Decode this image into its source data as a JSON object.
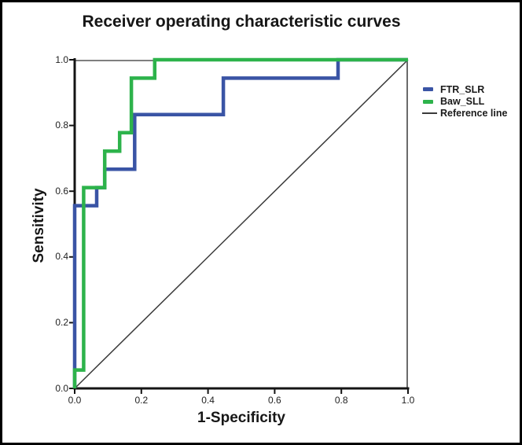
{
  "title": "Receiver operating characteristic curves",
  "axes": {
    "x_label": "1-Specificity",
    "y_label": "Sensitivity",
    "x_ticks": [
      "0.0",
      "0.2",
      "0.4",
      "0.6",
      "0.8",
      "1.0"
    ],
    "y_ticks": [
      "0.0",
      "0.2",
      "0.4",
      "0.6",
      "0.8",
      "1.0"
    ]
  },
  "legend": {
    "position": "right",
    "items": [
      {
        "label": "FTR_SLR",
        "color": "#3a54a5",
        "swatch": "thick-dash"
      },
      {
        "label": "Baw_SLL",
        "color": "#2db34b",
        "swatch": "thick-dash"
      },
      {
        "label": "Reference line",
        "color": "#3a3a3a",
        "swatch": "thin-line"
      }
    ]
  },
  "chart_data": {
    "type": "line",
    "subtype": "roc-step-curves",
    "title": "Receiver operating characteristic curves",
    "xlabel": "1-Specificity",
    "ylabel": "Sensitivity",
    "xlim": [
      0.0,
      1.0
    ],
    "ylim": [
      0.0,
      1.0
    ],
    "grid": false,
    "legend_position": "right",
    "series": [
      {
        "name": "Reference line",
        "color": "#3a3a3a",
        "width": 1.5,
        "points": [
          [
            0.0,
            0.0
          ],
          [
            1.0,
            1.0
          ]
        ]
      },
      {
        "name": "FTR_SLR",
        "color": "#3a54a5",
        "width": 4.5,
        "points": [
          [
            0.0,
            0.0
          ],
          [
            0.0,
            0.556
          ],
          [
            0.066,
            0.556
          ],
          [
            0.066,
            0.611
          ],
          [
            0.09,
            0.611
          ],
          [
            0.09,
            0.667
          ],
          [
            0.18,
            0.667
          ],
          [
            0.18,
            0.833
          ],
          [
            0.446,
            0.833
          ],
          [
            0.446,
            0.944
          ],
          [
            0.79,
            0.944
          ],
          [
            0.79,
            1.0
          ],
          [
            1.0,
            1.0
          ]
        ]
      },
      {
        "name": "Baw_SLL",
        "color": "#2db34b",
        "width": 4.5,
        "points": [
          [
            0.0,
            0.0
          ],
          [
            0.0,
            0.056
          ],
          [
            0.027,
            0.056
          ],
          [
            0.027,
            0.611
          ],
          [
            0.09,
            0.611
          ],
          [
            0.09,
            0.722
          ],
          [
            0.135,
            0.722
          ],
          [
            0.135,
            0.778
          ],
          [
            0.17,
            0.778
          ],
          [
            0.17,
            0.944
          ],
          [
            0.24,
            0.944
          ],
          [
            0.24,
            1.0
          ],
          [
            1.0,
            1.0
          ]
        ]
      }
    ]
  }
}
